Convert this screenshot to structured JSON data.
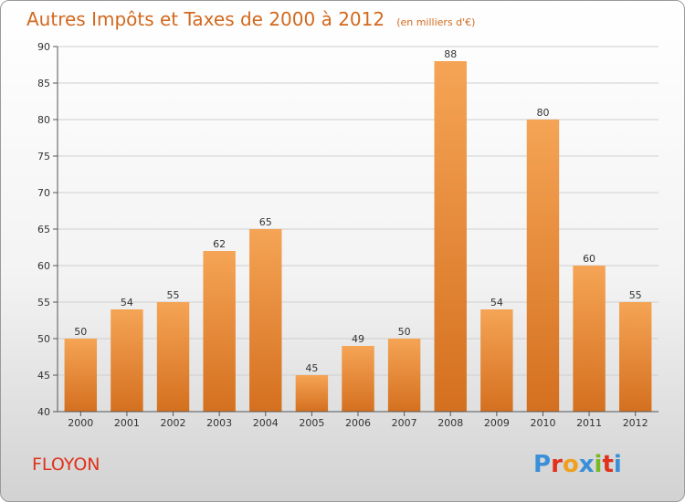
{
  "colors": {
    "bar_top": "#f5a455",
    "bar_bottom": "#d4701f",
    "title": "#d2691e",
    "commune": "#e0311c",
    "logo": [
      "#3a8fd8",
      "#e0311c",
      "#f0a020",
      "#3a8fd8",
      "#78b828",
      "#e0311c",
      "#3a8fd8"
    ]
  },
  "commune": "FLOYON",
  "logo": {
    "text": "Proxiti",
    "letters": [
      "P",
      "r",
      "o",
      "x",
      "i",
      "t",
      "i"
    ]
  },
  "chart_data": {
    "type": "bar",
    "title": "Autres Impôts et Taxes de 2000 à 2012",
    "subtitle": "(en milliers d'€)",
    "categories": [
      "2000",
      "2001",
      "2002",
      "2003",
      "2004",
      "2005",
      "2006",
      "2007",
      "2008",
      "2009",
      "2010",
      "2011",
      "2012"
    ],
    "values": [
      50,
      54,
      55,
      62,
      65,
      45,
      49,
      50,
      88,
      54,
      80,
      60,
      55
    ],
    "ylim": [
      40,
      90
    ],
    "yticks": [
      40,
      45,
      50,
      55,
      60,
      65,
      70,
      75,
      80,
      85,
      90
    ],
    "grid": true,
    "xlabel": "",
    "ylabel": ""
  }
}
